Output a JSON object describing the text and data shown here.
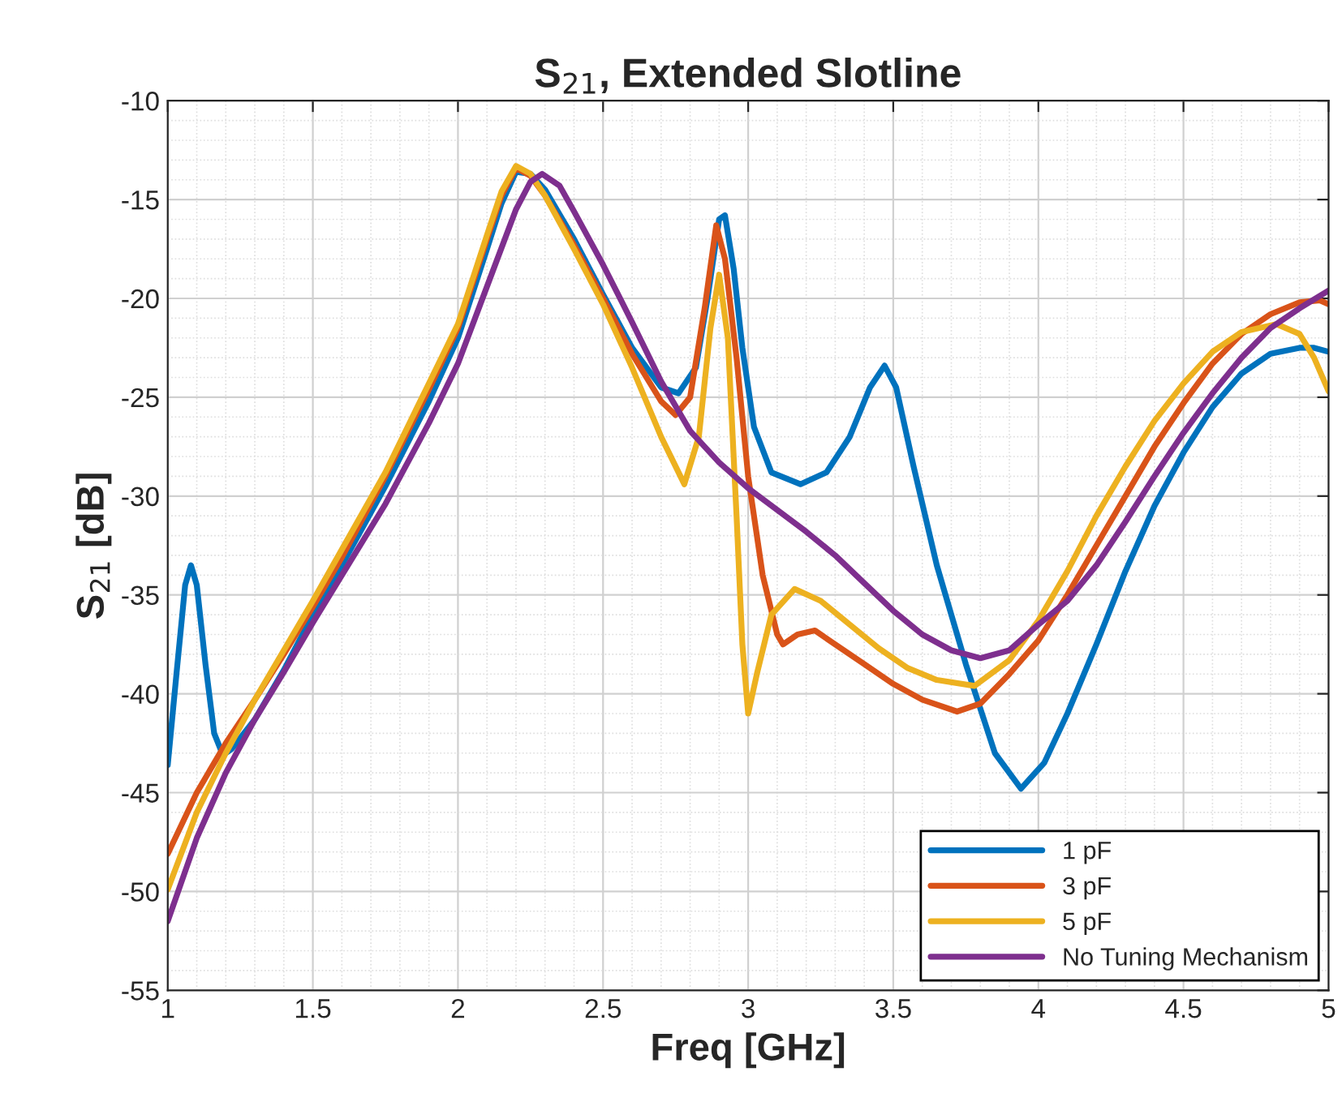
{
  "chart_data": {
    "type": "line",
    "title": "S$_{21}$, Extended Slotline",
    "xlabel": "Freq [GHz]",
    "ylabel": "S$_{21}$ [dB]",
    "xlim": [
      1,
      5
    ],
    "xticks": [
      1,
      1.5,
      2,
      2.5,
      3,
      3.5,
      4,
      4.5,
      5
    ],
    "ylim": [
      -55,
      -10
    ],
    "yticks": [
      -55,
      -50,
      -45,
      -40,
      -35,
      -30,
      -25,
      -20,
      -15,
      -10
    ],
    "grid": true,
    "legend": "bottom right",
    "marker": "none",
    "line_style": "solid",
    "series": [
      {
        "name": "1 pF",
        "color": "#0072bd",
        "x": [
          1.0,
          1.03,
          1.06,
          1.08,
          1.1,
          1.13,
          1.16,
          1.19,
          1.22,
          1.3,
          1.4,
          1.5,
          1.6,
          1.75,
          1.9,
          2.0,
          2.1,
          2.15,
          2.2,
          2.25,
          2.3,
          2.4,
          2.5,
          2.6,
          2.7,
          2.76,
          2.82,
          2.86,
          2.9,
          2.92,
          2.95,
          2.98,
          3.02,
          3.08,
          3.18,
          3.27,
          3.35,
          3.42,
          3.47,
          3.51,
          3.57,
          3.65,
          3.75,
          3.85,
          3.94,
          4.02,
          4.1,
          4.2,
          4.3,
          4.4,
          4.5,
          4.6,
          4.7,
          4.8,
          4.9,
          4.95,
          5.0
        ],
        "values": [
          -43.6,
          -39,
          -34.5,
          -33.5,
          -34.5,
          -38.5,
          -42,
          -43.1,
          -42.8,
          -41.3,
          -38.8,
          -36,
          -33.5,
          -29.5,
          -25.2,
          -22,
          -17.5,
          -15.2,
          -13.6,
          -13.7,
          -14.5,
          -17,
          -19.8,
          -22.5,
          -24.5,
          -24.8,
          -23.5,
          -20,
          -16,
          -15.8,
          -18.5,
          -22.5,
          -26.5,
          -28.8,
          -29.4,
          -28.8,
          -27,
          -24.5,
          -23.4,
          -24.5,
          -28.5,
          -33.5,
          -38.5,
          -43,
          -44.8,
          -43.5,
          -41,
          -37.5,
          -33.8,
          -30.5,
          -27.8,
          -25.5,
          -23.8,
          -22.8,
          -22.5,
          -22.5,
          -22.7
        ]
      },
      {
        "name": "3 pF",
        "color": "#d95319",
        "x": [
          1.0,
          1.1,
          1.2,
          1.3,
          1.4,
          1.5,
          1.6,
          1.75,
          1.9,
          2.0,
          2.1,
          2.15,
          2.2,
          2.25,
          2.3,
          2.4,
          2.5,
          2.6,
          2.7,
          2.75,
          2.8,
          2.85,
          2.89,
          2.92,
          2.96,
          3.0,
          3.05,
          3.1,
          3.12,
          3.17,
          3.23,
          3.3,
          3.4,
          3.5,
          3.6,
          3.72,
          3.8,
          3.9,
          4.0,
          4.1,
          4.2,
          4.3,
          4.4,
          4.5,
          4.6,
          4.7,
          4.8,
          4.9,
          4.97,
          5.0
        ],
        "values": [
          -48.1,
          -45,
          -42.5,
          -40.3,
          -38,
          -35.6,
          -33.1,
          -29,
          -24.6,
          -21.5,
          -17,
          -14.8,
          -13.4,
          -13.8,
          -14.8,
          -17.3,
          -20,
          -22.8,
          -25.2,
          -25.9,
          -25,
          -20.5,
          -16.3,
          -18,
          -23,
          -29,
          -34,
          -37,
          -37.5,
          -37,
          -36.8,
          -37.5,
          -38.5,
          -39.5,
          -40.3,
          -40.9,
          -40.5,
          -39,
          -37.3,
          -35,
          -32.5,
          -30,
          -27.5,
          -25.3,
          -23.3,
          -21.8,
          -20.8,
          -20.2,
          -20.1,
          -20.3
        ]
      },
      {
        "name": "5 pF",
        "color": "#edb120",
        "x": [
          1.0,
          1.1,
          1.2,
          1.3,
          1.4,
          1.5,
          1.6,
          1.75,
          1.9,
          2.0,
          2.1,
          2.15,
          2.2,
          2.25,
          2.3,
          2.4,
          2.5,
          2.6,
          2.7,
          2.78,
          2.83,
          2.87,
          2.9,
          2.93,
          2.96,
          2.98,
          3.0,
          3.03,
          3.08,
          3.16,
          3.25,
          3.35,
          3.45,
          3.55,
          3.65,
          3.78,
          3.9,
          4.0,
          4.1,
          4.2,
          4.3,
          4.4,
          4.5,
          4.6,
          4.7,
          4.82,
          4.9,
          4.95,
          5.0
        ],
        "values": [
          -49.9,
          -46,
          -43,
          -40.3,
          -37.8,
          -35.3,
          -32.7,
          -28.8,
          -24.3,
          -21.3,
          -16.8,
          -14.6,
          -13.3,
          -13.7,
          -14.8,
          -17.5,
          -20.3,
          -23.5,
          -27,
          -29.4,
          -27,
          -21.5,
          -18.8,
          -22,
          -31,
          -37.5,
          -41,
          -39,
          -36,
          -34.7,
          -35.3,
          -36.5,
          -37.7,
          -38.7,
          -39.3,
          -39.6,
          -38.3,
          -36.3,
          -33.8,
          -31,
          -28.5,
          -26.2,
          -24.3,
          -22.7,
          -21.7,
          -21.3,
          -21.8,
          -23,
          -24.7
        ]
      },
      {
        "name": "No Tuning Mechanism",
        "color": "#7e2f8e",
        "x": [
          1.0,
          1.1,
          1.2,
          1.3,
          1.4,
          1.5,
          1.6,
          1.75,
          1.9,
          2.0,
          2.1,
          2.2,
          2.25,
          2.29,
          2.35,
          2.4,
          2.5,
          2.6,
          2.7,
          2.8,
          2.9,
          3.0,
          3.1,
          3.2,
          3.3,
          3.4,
          3.5,
          3.6,
          3.7,
          3.8,
          3.9,
          4.0,
          4.1,
          4.2,
          4.3,
          4.4,
          4.5,
          4.6,
          4.7,
          4.8,
          4.9,
          5.0
        ],
        "values": [
          -51.5,
          -47.3,
          -44,
          -41.3,
          -38.9,
          -36.4,
          -34,
          -30.4,
          -26.3,
          -23.3,
          -19.4,
          -15.5,
          -14.1,
          -13.7,
          -14.3,
          -15.6,
          -18.3,
          -21.2,
          -24.2,
          -26.7,
          -28.3,
          -29.6,
          -30.7,
          -31.8,
          -33,
          -34.4,
          -35.8,
          -37,
          -37.8,
          -38.2,
          -37.8,
          -36.5,
          -35.3,
          -33.5,
          -31.3,
          -29,
          -26.8,
          -24.8,
          -23,
          -21.5,
          -20.5,
          -19.6
        ]
      }
    ]
  }
}
